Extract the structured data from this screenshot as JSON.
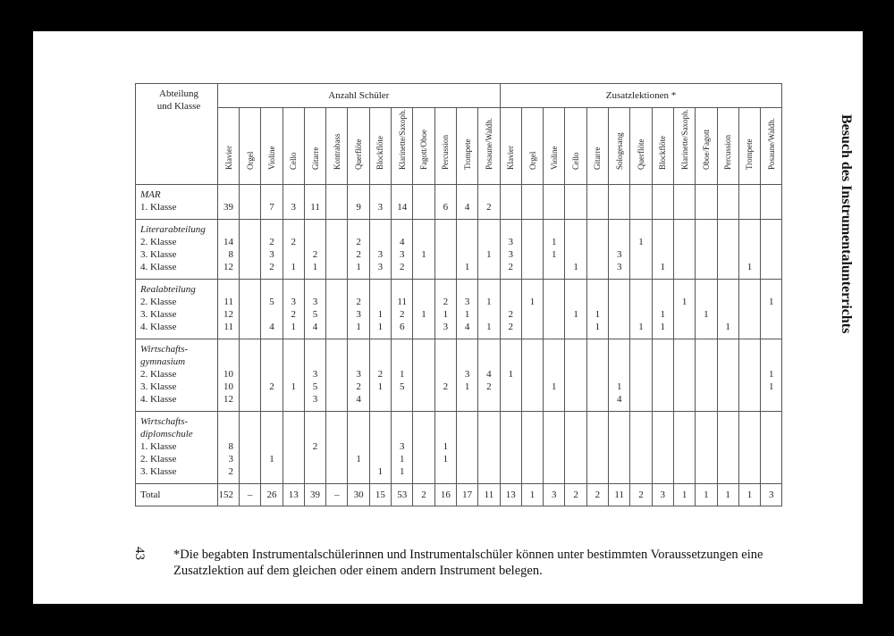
{
  "side_title": "Besuch des Instrumentalunterrichts",
  "page_number": "43",
  "footnote": "*Die begabten Instrumentalschülerinnen und Instrumentalschüler können unter bestimmten Voraussetzungen eine Zusatzlektion auf dem gleichen oder einem andern Instrument belegen.",
  "table": {
    "corner_lines": [
      "Abteilung",
      "und Klasse"
    ],
    "group_headers": [
      "Anzahl Schüler",
      "Zusatzlektionen *"
    ],
    "columns_anzahl": [
      "Klavier",
      "Orgel",
      "Violine",
      "Cello",
      "Gitarre",
      "Kontrabass",
      "Querflöte",
      "Blockflöte",
      "Klarinette/Saxoph.",
      "Fagott/Oboe",
      "Percussion",
      "Trompete",
      "Posaune/Waldh."
    ],
    "columns_zusatz": [
      "Klavier",
      "Orgel",
      "Violine",
      "Cello",
      "Gitarre",
      "Sologesang",
      "Querflöte",
      "Blockflöte",
      "Klarinette/Saxoph.",
      "Oboe/Fagott",
      "Percussion",
      "Trompete",
      "Posaune/Waldh."
    ],
    "groups": [
      {
        "title_lines": [
          "MAR"
        ],
        "classes": [
          {
            "label": "1. Klasse",
            "values": [
              "39",
              "",
              "7",
              "3",
              "11",
              "",
              "9",
              "3",
              "14",
              "",
              "6",
              "4",
              "2",
              "",
              "",
              "",
              "",
              "",
              "",
              "",
              "",
              "",
              "",
              "",
              "",
              ""
            ]
          }
        ]
      },
      {
        "title_lines": [
          "Literarabteilung"
        ],
        "classes": [
          {
            "label": "2. Klasse",
            "values": [
              "14",
              "",
              "2",
              "2",
              "",
              "",
              "2",
              "",
              "4",
              "",
              "",
              "",
              "",
              "3",
              "",
              "1",
              "",
              "",
              "",
              "1",
              "",
              "",
              "",
              "",
              "",
              ""
            ]
          },
          {
            "label": "3. Klasse",
            "values": [
              "8",
              "",
              "3",
              "",
              "2",
              "",
              "2",
              "3",
              "3",
              "1",
              "",
              "",
              "1",
              "3",
              "",
              "1",
              "",
              "",
              "3",
              "",
              "",
              "",
              "",
              "",
              "",
              ""
            ]
          },
          {
            "label": "4. Klasse",
            "values": [
              "12",
              "",
              "2",
              "1",
              "1",
              "",
              "1",
              "3",
              "2",
              "",
              "",
              "1",
              "",
              "2",
              "",
              "",
              "1",
              "",
              "3",
              "",
              "1",
              "",
              "",
              "",
              "1",
              ""
            ]
          }
        ]
      },
      {
        "title_lines": [
          "Realabteilung"
        ],
        "classes": [
          {
            "label": "2. Klasse",
            "values": [
              "11",
              "",
              "5",
              "3",
              "3",
              "",
              "2",
              "",
              "11",
              "",
              "2",
              "3",
              "1",
              "",
              "1",
              "",
              "",
              "",
              "",
              "",
              "",
              "1",
              "",
              "",
              "",
              "1"
            ]
          },
          {
            "label": "3. Klasse",
            "values": [
              "12",
              "",
              "",
              "2",
              "5",
              "",
              "3",
              "1",
              "2",
              "1",
              "1",
              "1",
              "",
              "2",
              "",
              "",
              "1",
              "1",
              "",
              "",
              "1",
              "",
              "1",
              "",
              "",
              ""
            ]
          },
          {
            "label": "4. Klasse",
            "values": [
              "11",
              "",
              "4",
              "1",
              "4",
              "",
              "1",
              "1",
              "6",
              "",
              "3",
              "4",
              "1",
              "2",
              "",
              "",
              "",
              "1",
              "",
              "1",
              "1",
              "",
              "",
              "1",
              "",
              ""
            ]
          }
        ]
      },
      {
        "title_lines": [
          "Wirtschafts-",
          "gymnasium"
        ],
        "classes": [
          {
            "label": "2. Klasse",
            "values": [
              "10",
              "",
              "",
              "",
              "3",
              "",
              "3",
              "2",
              "1",
              "",
              "",
              "3",
              "4",
              "1",
              "",
              "",
              "",
              "",
              "",
              "",
              "",
              "",
              "",
              "",
              "",
              "1"
            ]
          },
          {
            "label": "3. Klasse",
            "values": [
              "10",
              "",
              "2",
              "1",
              "5",
              "",
              "2",
              "1",
              "5",
              "",
              "2",
              "1",
              "2",
              "",
              "",
              "1",
              "",
              "",
              "1",
              "",
              "",
              "",
              "",
              "",
              "",
              "1"
            ]
          },
          {
            "label": "4. Klasse",
            "values": [
              "12",
              "",
              "",
              "",
              "3",
              "",
              "4",
              "",
              "",
              "",
              "",
              "",
              "",
              "",
              "",
              "",
              "",
              "",
              "4",
              "",
              "",
              "",
              "",
              "",
              "",
              ""
            ]
          }
        ]
      },
      {
        "title_lines": [
          "Wirtschafts-",
          "diplomschule"
        ],
        "classes": [
          {
            "label": "1. Klasse",
            "values": [
              "8",
              "",
              "",
              "",
              "2",
              "",
              "",
              "",
              "3",
              "",
              "1",
              "",
              "",
              "",
              "",
              "",
              "",
              "",
              "",
              "",
              "",
              "",
              "",
              "",
              "",
              ""
            ]
          },
          {
            "label": "2. Klasse",
            "values": [
              "3",
              "",
              "1",
              "",
              "",
              "",
              "1",
              "",
              "1",
              "",
              "1",
              "",
              "",
              "",
              "",
              "",
              "",
              "",
              "",
              "",
              "",
              "",
              "",
              "",
              "",
              ""
            ]
          },
          {
            "label": "3. Klasse",
            "values": [
              "2",
              "",
              "",
              "",
              "",
              "",
              "",
              "1",
              "1",
              "",
              "",
              "",
              "",
              "",
              "",
              "",
              "",
              "",
              "",
              "",
              "",
              "",
              "",
              "",
              "",
              ""
            ]
          }
        ]
      }
    ],
    "total": {
      "label": "Total",
      "values": [
        "152",
        "–",
        "26",
        "13",
        "39",
        "–",
        "30",
        "15",
        "53",
        "2",
        "16",
        "17",
        "11",
        "13",
        "1",
        "3",
        "2",
        "2",
        "11",
        "2",
        "3",
        "1",
        "1",
        "1",
        "1",
        "3"
      ]
    }
  }
}
